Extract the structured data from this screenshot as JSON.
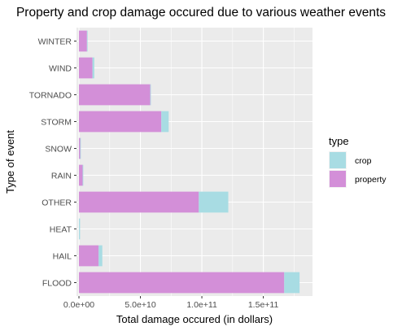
{
  "chart_data": {
    "type": "bar",
    "orientation": "horizontal",
    "stacked": true,
    "title": "Property and crop damage occured due to various weather events",
    "xlabel": "Total damage occured (in dollars)",
    "ylabel": "Type of event",
    "categories": [
      "FLOOD",
      "HAIL",
      "HEAT",
      "OTHER",
      "RAIN",
      "SNOW",
      "STORM",
      "TORNADO",
      "WIND",
      "WINTER"
    ],
    "series": [
      {
        "name": "property",
        "color": "#d38fd8",
        "values": [
          167000000000.0,
          16000000000.0,
          0.0,
          97500000000.0,
          3000000000.0,
          1000000000.0,
          67000000000.0,
          58000000000.0,
          11000000000.0,
          6500000000.0
        ]
      },
      {
        "name": "crop",
        "color": "#a8dce3",
        "values": [
          12500000000.0,
          3000000000.0,
          900000000.0,
          24000000000.0,
          300000000.0,
          100000000.0,
          6000000000.0,
          400000000.0,
          1500000000.0,
          200000000.0
        ]
      }
    ],
    "xlim": [
      -2000000000.0,
      190000000000.0
    ],
    "xticks": [
      0,
      50000000000.0,
      100000000000.0,
      150000000000.0
    ],
    "xtick_labels": [
      "0.0e+00",
      "5.0e+10",
      "1.0e+11",
      "1.5e+11"
    ],
    "grid": true,
    "legend": {
      "title": "type",
      "position": "right",
      "entries": [
        "crop",
        "property"
      ]
    }
  }
}
